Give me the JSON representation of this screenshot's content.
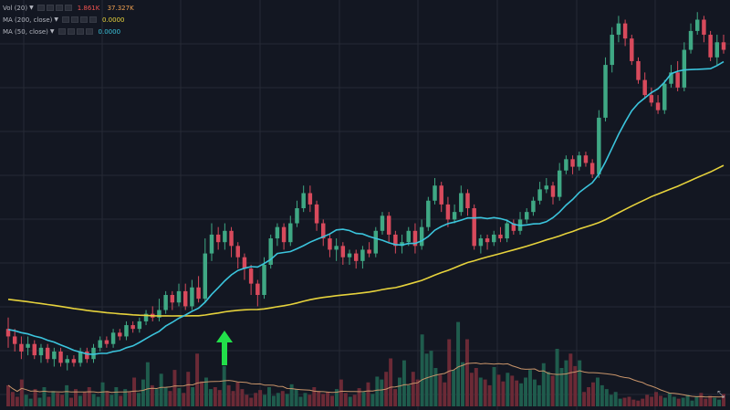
{
  "legend": {
    "vol": {
      "name": "Vol (20)",
      "values": [
        "1.861K",
        "37.327K"
      ],
      "colors": [
        "#ef5350",
        "#f0a050"
      ]
    },
    "ma200": {
      "name": "MA (200, close)",
      "value": "0.0000",
      "color": "#e6d23c"
    },
    "ma50": {
      "name": "MA (50, close)",
      "value": "0.0000",
      "color": "#3bc4dc"
    }
  },
  "colors": {
    "background": "#131722",
    "grid": "#262a35",
    "up": "#3fa884",
    "down": "#d84a5c",
    "up_volume": "#1f5c4d",
    "down_volume": "#6b2a36",
    "ma200": "#e6d23c",
    "ma50": "#3bc4dc",
    "vol_ma": "#c8946a",
    "arrow": "#22e04a"
  },
  "icons": {
    "arrow": "up-arrow-icon",
    "corner": "expand-icon"
  },
  "chart_data": {
    "type": "candlestick",
    "ylim": [
      0,
      100
    ],
    "series": [
      {
        "name": "Vol (20)",
        "type": "volume",
        "ylim": [
          0,
          100
        ],
        "values": [
          22,
          15,
          10,
          28,
          12,
          8,
          18,
          9,
          20,
          10,
          16,
          14,
          12,
          22,
          9,
          18,
          11,
          15,
          20,
          13,
          10,
          25,
          16,
          12,
          20,
          11,
          18,
          15,
          30,
          14,
          28,
          46,
          22,
          18,
          34,
          20,
          16,
          38,
          19,
          14,
          36,
          20,
          55,
          26,
          30,
          18,
          20,
          17,
          42,
          22,
          16,
          25,
          18,
          12,
          9,
          14,
          17,
          12,
          20,
          11,
          14,
          16,
          13,
          23,
          18,
          10,
          14,
          12,
          20,
          16,
          13,
          15,
          11,
          18,
          28,
          14,
          10,
          12,
          19,
          15,
          25,
          13,
          31,
          28,
          36,
          50,
          18,
          30,
          48,
          22,
          36,
          28,
          75,
          55,
          58,
          40,
          33,
          25,
          70,
          38,
          88,
          46,
          70,
          35,
          40,
          30,
          28,
          22,
          41,
          33,
          26,
          35,
          32,
          27,
          24,
          30,
          38,
          28,
          22,
          45,
          36,
          32,
          60,
          40,
          48,
          55,
          42,
          48,
          15,
          20,
          25,
          30,
          22,
          18,
          12,
          15,
          8,
          9,
          10,
          7,
          6,
          8,
          12,
          10,
          15,
          11,
          9,
          14,
          10,
          8,
          9,
          12,
          6,
          10,
          14,
          8,
          11,
          9,
          7,
          13
        ]
      },
      {
        "name": "MA (200, close)",
        "values": []
      },
      {
        "name": "MA (50, close)",
        "values": []
      }
    ],
    "candles": [
      [
        14,
        12,
        17,
        9
      ],
      [
        12,
        10,
        14,
        8
      ],
      [
        10,
        8,
        12,
        6
      ],
      [
        9,
        10,
        12,
        7
      ],
      [
        10,
        7,
        11,
        6
      ],
      [
        7,
        9,
        10,
        5
      ],
      [
        9,
        6,
        10,
        5
      ],
      [
        6,
        8,
        9,
        4
      ],
      [
        8,
        5,
        9,
        4
      ],
      [
        5,
        6,
        7,
        3
      ],
      [
        6,
        5,
        7,
        4
      ],
      [
        5,
        8,
        9,
        4
      ],
      [
        8,
        6,
        9,
        5
      ],
      [
        6,
        9,
        10,
        5
      ],
      [
        9,
        11,
        12,
        8
      ],
      [
        11,
        10,
        12,
        9
      ],
      [
        10,
        13,
        14,
        9
      ],
      [
        13,
        12,
        14,
        11
      ],
      [
        12,
        15,
        16,
        11
      ],
      [
        15,
        14,
        16,
        13
      ],
      [
        14,
        16,
        17,
        13
      ],
      [
        16,
        18,
        19,
        15
      ],
      [
        18,
        17,
        20,
        16
      ],
      [
        17,
        19,
        22,
        16
      ],
      [
        19,
        23,
        24,
        18
      ],
      [
        23,
        21,
        24,
        19
      ],
      [
        21,
        24,
        26,
        20
      ],
      [
        24,
        20,
        26,
        19
      ],
      [
        20,
        25,
        27,
        19
      ],
      [
        25,
        22,
        28,
        21
      ],
      [
        22,
        34,
        38,
        21
      ],
      [
        34,
        39,
        42,
        32
      ],
      [
        39,
        37,
        41,
        35
      ],
      [
        37,
        40,
        42,
        35
      ],
      [
        40,
        36,
        41,
        33
      ],
      [
        36,
        33,
        37,
        30
      ],
      [
        33,
        30,
        34,
        27
      ],
      [
        30,
        26,
        31,
        23
      ],
      [
        26,
        23,
        27,
        20
      ],
      [
        23,
        31,
        33,
        22
      ],
      [
        31,
        38,
        39,
        30
      ],
      [
        38,
        41,
        42,
        36
      ],
      [
        41,
        37,
        42,
        35
      ],
      [
        37,
        42,
        44,
        36
      ],
      [
        42,
        46,
        48,
        41
      ],
      [
        46,
        50,
        52,
        45
      ],
      [
        50,
        47,
        52,
        45
      ],
      [
        47,
        42,
        48,
        40
      ],
      [
        42,
        38,
        43,
        36
      ],
      [
        38,
        35,
        39,
        33
      ],
      [
        35,
        36,
        38,
        32
      ],
      [
        36,
        33,
        37,
        31
      ],
      [
        33,
        34,
        35,
        31
      ],
      [
        34,
        32,
        35,
        30
      ],
      [
        32,
        35,
        36,
        30
      ],
      [
        35,
        34,
        37,
        33
      ],
      [
        34,
        40,
        41,
        33
      ],
      [
        40,
        44,
        45,
        39
      ],
      [
        44,
        39,
        45,
        37
      ],
      [
        39,
        36,
        40,
        34
      ],
      [
        36,
        37,
        39,
        34
      ],
      [
        37,
        40,
        41,
        36
      ],
      [
        40,
        36,
        42,
        34
      ],
      [
        36,
        41,
        43,
        35
      ],
      [
        41,
        48,
        49,
        40
      ],
      [
        48,
        52,
        54,
        47
      ],
      [
        52,
        47,
        53,
        45
      ],
      [
        47,
        43,
        49,
        41
      ],
      [
        43,
        45,
        47,
        42
      ],
      [
        45,
        50,
        52,
        44
      ],
      [
        50,
        46,
        51,
        44
      ],
      [
        46,
        36,
        47,
        35
      ],
      [
        36,
        38,
        39,
        34
      ],
      [
        38,
        37,
        39,
        35
      ],
      [
        37,
        39,
        40,
        36
      ],
      [
        39,
        38,
        41,
        37
      ],
      [
        38,
        42,
        43,
        37
      ],
      [
        42,
        40,
        43,
        39
      ],
      [
        40,
        43,
        45,
        39
      ],
      [
        43,
        45,
        46,
        42
      ],
      [
        45,
        48,
        49,
        44
      ],
      [
        48,
        51,
        53,
        47
      ],
      [
        51,
        52,
        54,
        50
      ],
      [
        52,
        49,
        53,
        47
      ],
      [
        49,
        56,
        58,
        48
      ],
      [
        56,
        59,
        60,
        55
      ],
      [
        59,
        57,
        60,
        55
      ],
      [
        57,
        60,
        61,
        56
      ],
      [
        60,
        58,
        61,
        57
      ],
      [
        58,
        55,
        59,
        54
      ],
      [
        55,
        70,
        72,
        54
      ],
      [
        70,
        84,
        86,
        69
      ],
      [
        84,
        92,
        94,
        82
      ],
      [
        92,
        95,
        97,
        90
      ],
      [
        95,
        91,
        96,
        89
      ],
      [
        91,
        85,
        92,
        84
      ],
      [
        85,
        80,
        86,
        79
      ],
      [
        80,
        76,
        82,
        75
      ],
      [
        76,
        74,
        78,
        73
      ],
      [
        74,
        72,
        76,
        71
      ],
      [
        72,
        79,
        80,
        71
      ],
      [
        79,
        82,
        84,
        78
      ],
      [
        82,
        78,
        85,
        77
      ],
      [
        78,
        88,
        90,
        77
      ],
      [
        88,
        93,
        95,
        87
      ],
      [
        93,
        96,
        98,
        92
      ],
      [
        96,
        92,
        97,
        90
      ],
      [
        92,
        86,
        93,
        85
      ],
      [
        86,
        90,
        92,
        84
      ],
      [
        90,
        88,
        92,
        87
      ]
    ]
  }
}
